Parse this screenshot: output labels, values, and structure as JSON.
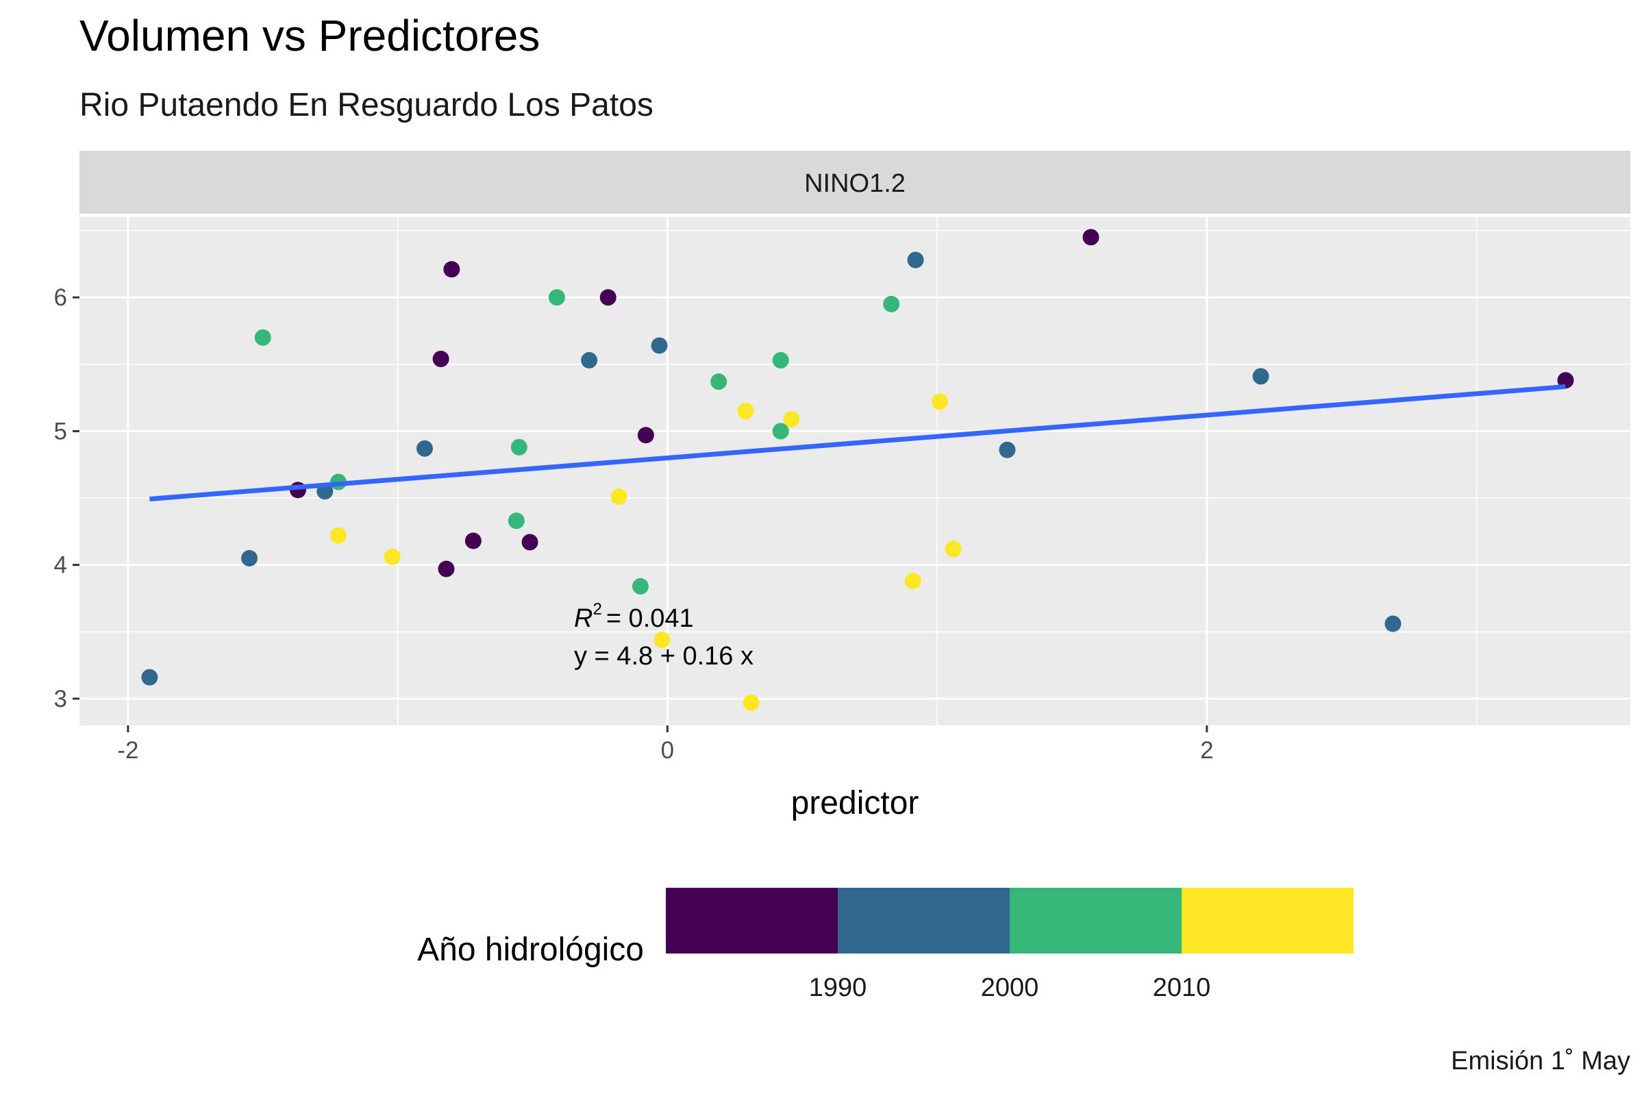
{
  "title": "Volumen vs Predictores",
  "subtitle": "Rio Putaendo En Resguardo Los Patos",
  "caption": "Emisión 1˚ May",
  "chart_data": {
    "type": "scatter",
    "facet": "NINO1.2",
    "xlabel": "predictor",
    "ylabel": "",
    "xlim": [
      -2.18,
      3.57
    ],
    "ylim": [
      2.8,
      6.6
    ],
    "x_ticks": [
      -2,
      0,
      2
    ],
    "y_ticks": [
      3,
      4,
      5,
      6
    ],
    "grid": true,
    "legend": {
      "title": "Año hidrológico",
      "position": "bottom",
      "labels": [
        "1990",
        "2000",
        "2010"
      ],
      "bins": [
        {
          "color": "#440154"
        },
        {
          "color": "#31688e"
        },
        {
          "color": "#35b779"
        },
        {
          "color": "#fde725"
        }
      ]
    },
    "points": [
      {
        "x": -1.92,
        "y": 3.16,
        "color": "#31688e"
      },
      {
        "x": -1.55,
        "y": 4.05,
        "color": "#31688e"
      },
      {
        "x": -1.5,
        "y": 5.7,
        "color": "#35b779"
      },
      {
        "x": -1.37,
        "y": 4.56,
        "color": "#440154"
      },
      {
        "x": -1.27,
        "y": 4.55,
        "color": "#31688e"
      },
      {
        "x": -1.22,
        "y": 4.62,
        "color": "#35b779"
      },
      {
        "x": -1.22,
        "y": 4.22,
        "color": "#fde725"
      },
      {
        "x": -1.02,
        "y": 4.06,
        "color": "#fde725"
      },
      {
        "x": -0.9,
        "y": 4.87,
        "color": "#31688e"
      },
      {
        "x": -0.84,
        "y": 5.54,
        "color": "#440154"
      },
      {
        "x": -0.82,
        "y": 3.97,
        "color": "#440154"
      },
      {
        "x": -0.8,
        "y": 6.21,
        "color": "#440154"
      },
      {
        "x": -0.72,
        "y": 4.18,
        "color": "#440154"
      },
      {
        "x": -0.56,
        "y": 4.33,
        "color": "#35b779"
      },
      {
        "x": -0.55,
        "y": 4.88,
        "color": "#35b779"
      },
      {
        "x": -0.51,
        "y": 4.17,
        "color": "#440154"
      },
      {
        "x": -0.41,
        "y": 6.0,
        "color": "#35b779"
      },
      {
        "x": -0.29,
        "y": 5.53,
        "color": "#31688e"
      },
      {
        "x": -0.22,
        "y": 6.0,
        "color": "#440154"
      },
      {
        "x": -0.18,
        "y": 4.51,
        "color": "#fde725"
      },
      {
        "x": -0.1,
        "y": 3.84,
        "color": "#35b779"
      },
      {
        "x": -0.08,
        "y": 4.97,
        "color": "#440154"
      },
      {
        "x": -0.03,
        "y": 5.64,
        "color": "#31688e"
      },
      {
        "x": -0.02,
        "y": 3.44,
        "color": "#fde725"
      },
      {
        "x": 0.19,
        "y": 5.37,
        "color": "#35b779"
      },
      {
        "x": 0.29,
        "y": 5.15,
        "color": "#fde725"
      },
      {
        "x": 0.31,
        "y": 2.97,
        "color": "#fde725"
      },
      {
        "x": 0.42,
        "y": 5.0,
        "color": "#35b779"
      },
      {
        "x": 0.42,
        "y": 5.53,
        "color": "#35b779"
      },
      {
        "x": 0.46,
        "y": 5.09,
        "color": "#fde725"
      },
      {
        "x": 0.83,
        "y": 5.95,
        "color": "#35b779"
      },
      {
        "x": 0.91,
        "y": 3.88,
        "color": "#fde725"
      },
      {
        "x": 0.92,
        "y": 6.28,
        "color": "#31688e"
      },
      {
        "x": 1.01,
        "y": 5.22,
        "color": "#fde725"
      },
      {
        "x": 1.06,
        "y": 4.12,
        "color": "#fde725"
      },
      {
        "x": 1.26,
        "y": 4.86,
        "color": "#31688e"
      },
      {
        "x": 1.57,
        "y": 6.45,
        "color": "#440154"
      },
      {
        "x": 2.2,
        "y": 5.41,
        "color": "#31688e"
      },
      {
        "x": 2.69,
        "y": 3.56,
        "color": "#31688e"
      },
      {
        "x": 3.33,
        "y": 5.38,
        "color": "#440154"
      }
    ],
    "fit_line": {
      "intercept": 4.8,
      "slope": 0.16,
      "x_range": [
        -1.92,
        3.33
      ],
      "color": "#3366ff"
    },
    "annotation": {
      "r2_label": "R",
      "r2_exp": "2",
      "r2_value": "= 0.041",
      "equation": "y = 4.8 + 0.16 x"
    }
  }
}
